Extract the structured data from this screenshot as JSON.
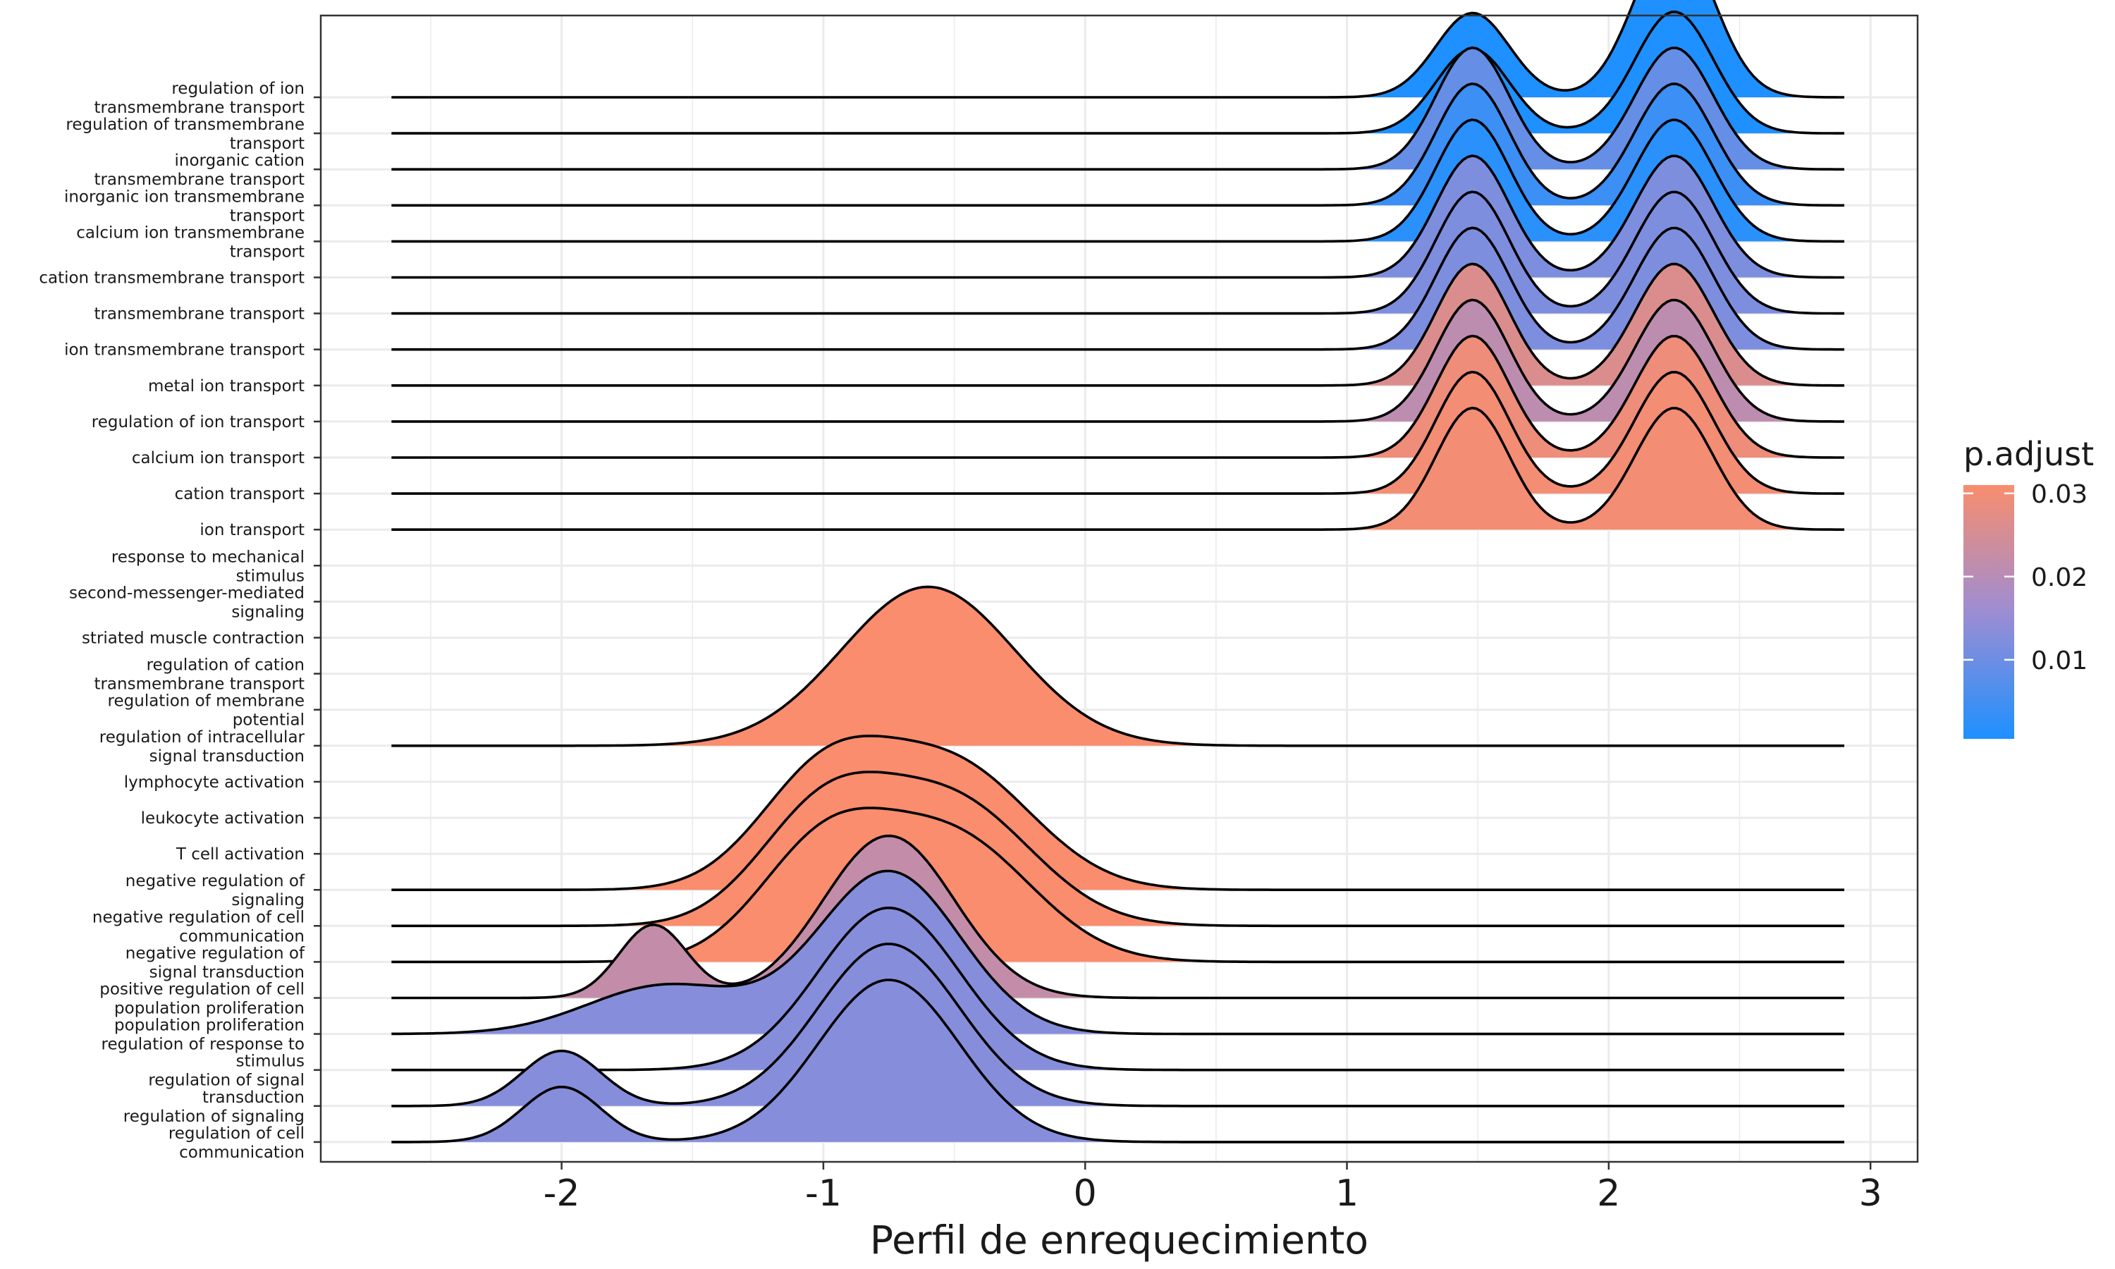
{
  "chart_data": {
    "type": "ridgeline",
    "xlabel": "Perfil de enrequecimiento",
    "xticks": [
      -2,
      -1,
      0,
      1,
      2,
      3
    ],
    "xlim": [
      -2.92,
      3.18
    ],
    "curve_x_range": [
      -2.65,
      2.9
    ],
    "grid": true,
    "legend": {
      "title": "p.adjust",
      "ticks": [
        0.03,
        0.02,
        0.01
      ],
      "range": [
        0.0005,
        0.031
      ],
      "low_color": "#1E90FF",
      "high_color": "#F98D6D",
      "placement": "right"
    },
    "rows": [
      {
        "label": [
          "regulation of ion",
          "transmembrane transport"
        ],
        "has_curve": true,
        "p_adjust": 0.0005,
        "peaks": [
          [
            1.48,
            0.14,
            0.52
          ],
          [
            2.25,
            0.15,
            1.0
          ]
        ]
      },
      {
        "label": [
          "regulation of transmembrane",
          "transport"
        ],
        "has_curve": true,
        "p_adjust": 0.0006,
        "peaks": [
          [
            1.48,
            0.14,
            0.52
          ],
          [
            2.25,
            0.15,
            0.75
          ]
        ]
      },
      {
        "label": [
          "inorganic cation",
          "transmembrane transport"
        ],
        "has_curve": true,
        "p_adjust": 0.009,
        "peaks": [
          [
            1.48,
            0.14,
            0.75
          ],
          [
            2.25,
            0.15,
            0.75
          ]
        ]
      },
      {
        "label": [
          "inorganic ion transmembrane",
          "transport"
        ],
        "has_curve": true,
        "p_adjust": 0.004,
        "peaks": [
          [
            1.48,
            0.14,
            0.75
          ],
          [
            2.25,
            0.15,
            0.75
          ]
        ]
      },
      {
        "label": [
          "calcium ion transmembrane",
          "transport"
        ],
        "has_curve": true,
        "p_adjust": 0.002,
        "peaks": [
          [
            1.48,
            0.14,
            0.75
          ],
          [
            2.25,
            0.15,
            0.75
          ]
        ]
      },
      {
        "label": [
          "cation transmembrane transport"
        ],
        "has_curve": true,
        "p_adjust": 0.012,
        "peaks": [
          [
            1.48,
            0.14,
            0.75
          ],
          [
            2.25,
            0.15,
            0.75
          ]
        ]
      },
      {
        "label": [
          "transmembrane transport"
        ],
        "has_curve": true,
        "p_adjust": 0.012,
        "peaks": [
          [
            1.48,
            0.14,
            0.75
          ],
          [
            2.25,
            0.15,
            0.75
          ]
        ]
      },
      {
        "label": [
          "ion transmembrane transport"
        ],
        "has_curve": true,
        "p_adjust": 0.012,
        "peaks": [
          [
            1.48,
            0.14,
            0.75
          ],
          [
            2.25,
            0.15,
            0.75
          ]
        ]
      },
      {
        "label": [
          "metal ion transport"
        ],
        "has_curve": true,
        "p_adjust": 0.026,
        "peaks": [
          [
            1.48,
            0.14,
            0.75
          ],
          [
            2.25,
            0.15,
            0.75
          ]
        ]
      },
      {
        "label": [
          "regulation of ion transport"
        ],
        "has_curve": true,
        "p_adjust": 0.021,
        "peaks": [
          [
            1.48,
            0.14,
            0.75
          ],
          [
            2.25,
            0.15,
            0.75
          ]
        ]
      },
      {
        "label": [
          "calcium ion transport"
        ],
        "has_curve": true,
        "p_adjust": 0.029,
        "peaks": [
          [
            1.48,
            0.14,
            0.75
          ],
          [
            2.25,
            0.15,
            0.75
          ]
        ]
      },
      {
        "label": [
          "cation transport"
        ],
        "has_curve": true,
        "p_adjust": 0.03,
        "peaks": [
          [
            1.48,
            0.14,
            0.75
          ],
          [
            2.25,
            0.15,
            0.75
          ]
        ]
      },
      {
        "label": [
          "ion transport"
        ],
        "has_curve": true,
        "p_adjust": 0.03,
        "peaks": [
          [
            1.48,
            0.14,
            0.75
          ],
          [
            2.25,
            0.15,
            0.75
          ]
        ]
      },
      {
        "label": [
          "response to mechanical",
          "stimulus"
        ],
        "has_curve": false
      },
      {
        "label": [
          "second-messenger-mediated",
          "signaling"
        ],
        "has_curve": false
      },
      {
        "label": [
          "striated muscle contraction"
        ],
        "has_curve": false
      },
      {
        "label": [
          "regulation of cation",
          "transmembrane transport"
        ],
        "has_curve": false
      },
      {
        "label": [
          "regulation of membrane",
          "potential"
        ],
        "has_curve": false
      },
      {
        "label": [
          "regulation of intracellular",
          "signal transduction"
        ],
        "has_curve": true,
        "p_adjust": 0.031,
        "peaks": [
          [
            -0.6,
            0.33,
            0.98
          ]
        ]
      },
      {
        "label": [
          "lymphocyte activation"
        ],
        "has_curve": false
      },
      {
        "label": [
          "leukocyte activation"
        ],
        "has_curve": false
      },
      {
        "label": [
          "T cell activation"
        ],
        "has_curve": false
      },
      {
        "label": [
          "negative regulation of",
          "signaling"
        ],
        "has_curve": true,
        "p_adjust": 0.031,
        "peaks": [
          [
            -1.0,
            0.25,
            0.68
          ],
          [
            -0.5,
            0.3,
            0.75
          ]
        ]
      },
      {
        "label": [
          "negative regulation of cell",
          "communication"
        ],
        "has_curve": true,
        "p_adjust": 0.031,
        "peaks": [
          [
            -1.0,
            0.25,
            0.68
          ],
          [
            -0.5,
            0.3,
            0.75
          ]
        ]
      },
      {
        "label": [
          "negative regulation of",
          "signal transduction"
        ],
        "has_curve": true,
        "p_adjust": 0.031,
        "peaks": [
          [
            -1.0,
            0.25,
            0.68
          ],
          [
            -0.5,
            0.3,
            0.75
          ]
        ]
      },
      {
        "label": [
          "positive regulation of cell",
          "population proliferation"
        ],
        "has_curve": true,
        "p_adjust": 0.022,
        "peaks": [
          [
            -1.65,
            0.13,
            0.45
          ],
          [
            -0.75,
            0.25,
            1.0
          ]
        ]
      },
      {
        "label": [
          "population proliferation",
          "regulation of response to"
        ],
        "has_curve": true,
        "p_adjust": 0.013,
        "peaks": [
          [
            -1.6,
            0.3,
            0.3
          ],
          [
            -0.75,
            0.27,
            1.0
          ]
        ]
      },
      {
        "label": [
          "stimulus",
          "regulation of signal"
        ],
        "has_curve": true,
        "p_adjust": 0.013,
        "peaks": [
          [
            -0.75,
            0.27,
            1.0
          ]
        ]
      },
      {
        "label": [
          "transduction",
          "regulation of signaling"
        ],
        "has_curve": true,
        "p_adjust": 0.013,
        "peaks": [
          [
            -2.0,
            0.15,
            0.34
          ],
          [
            -0.75,
            0.27,
            1.0
          ]
        ]
      },
      {
        "label": [
          "regulation of cell",
          "communication"
        ],
        "has_curve": true,
        "p_adjust": 0.013,
        "peaks": [
          [
            -2.0,
            0.15,
            0.34
          ],
          [
            -0.75,
            0.27,
            1.0
          ]
        ]
      }
    ]
  }
}
